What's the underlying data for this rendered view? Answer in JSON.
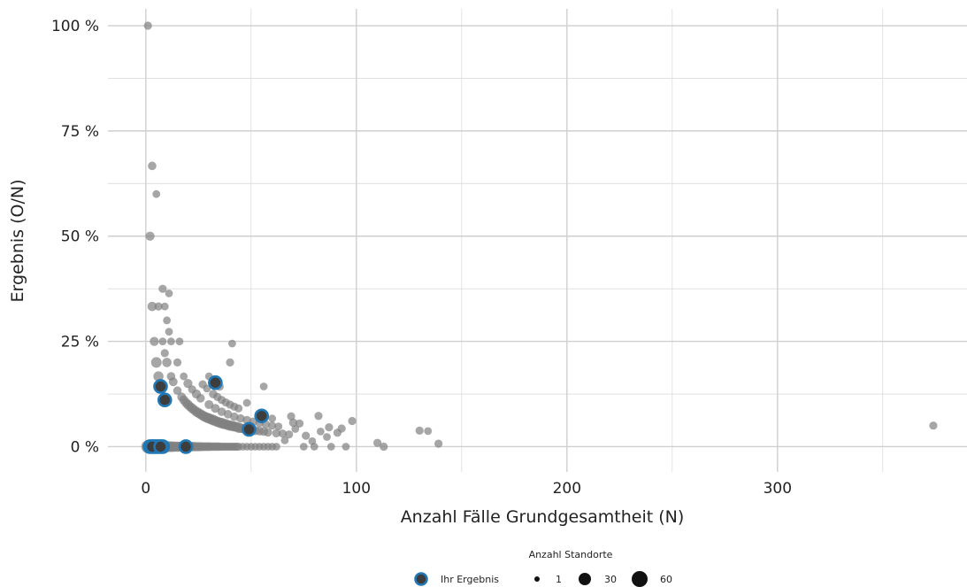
{
  "chart_data": {
    "type": "scatter",
    "xlabel": "Anzahl Fälle Grundgesamtheit (N)",
    "ylabel": "Ergebnis (O/N)",
    "xlim": [
      -18,
      390
    ],
    "ylim": [
      -6,
      104
    ],
    "x_ticks": [
      {
        "value": 0,
        "label": "0"
      },
      {
        "value": 100,
        "label": "100"
      },
      {
        "value": 200,
        "label": "200"
      },
      {
        "value": 300,
        "label": "300"
      }
    ],
    "y_ticks": [
      {
        "value": 0,
        "label": "0 %"
      },
      {
        "value": 25,
        "label": "25 %"
      },
      {
        "value": 50,
        "label": "50 %"
      },
      {
        "value": 75,
        "label": "75 %"
      },
      {
        "value": 100,
        "label": "100 %"
      }
    ],
    "grid": true,
    "legend": {
      "title": "Anzahl Standorte",
      "position": "bottom",
      "highlight_label": "Ihr Ergebnis",
      "size_labels": [
        "1",
        "30",
        "60"
      ],
      "size_values": [
        1,
        30,
        60
      ]
    },
    "colors": {
      "point": "#808080",
      "highlight_fill": "#3d3d3d",
      "highlight_ring": "#1f77b4"
    },
    "series": [
      {
        "name": "Standorte",
        "points": [
          [
            1,
            100,
            5
          ],
          [
            3,
            66.7,
            6
          ],
          [
            5,
            60,
            4
          ],
          [
            2,
            50,
            8
          ],
          [
            3,
            33.3,
            9
          ],
          [
            6,
            33.3,
            5
          ],
          [
            9,
            33.3,
            4
          ],
          [
            8,
            37.5,
            5
          ],
          [
            11,
            36.4,
            4
          ],
          [
            4,
            25,
            8
          ],
          [
            8,
            25,
            4
          ],
          [
            12,
            25,
            4
          ],
          [
            16,
            25,
            4
          ],
          [
            41,
            24.5,
            4
          ],
          [
            10,
            30,
            4
          ],
          [
            11,
            27.3,
            4
          ],
          [
            9,
            22.2,
            5
          ],
          [
            5,
            20,
            14
          ],
          [
            10,
            20,
            9
          ],
          [
            15,
            20,
            5
          ],
          [
            40,
            20,
            5
          ],
          [
            6,
            16.7,
            12
          ],
          [
            12,
            16.7,
            6
          ],
          [
            18,
            16.7,
            4
          ],
          [
            30,
            16.7,
            4
          ],
          [
            13,
            15.4,
            7
          ],
          [
            20,
            15,
            8
          ],
          [
            27,
            14.8,
            5
          ],
          [
            35,
            14.3,
            6
          ],
          [
            56,
            14.3,
            4
          ],
          [
            15,
            13.3,
            6
          ],
          [
            22,
            13.6,
            5
          ],
          [
            29,
            13.8,
            4
          ],
          [
            24,
            12.5,
            8
          ],
          [
            32,
            12.5,
            6
          ],
          [
            17,
            11.8,
            7
          ],
          [
            34,
            11.8,
            5
          ],
          [
            26,
            11.5,
            6
          ],
          [
            18,
            11.1,
            8
          ],
          [
            36,
            11.1,
            5
          ],
          [
            19,
            10.5,
            8
          ],
          [
            38,
            10.5,
            5
          ],
          [
            20,
            10,
            10
          ],
          [
            30,
            10,
            7
          ],
          [
            40,
            10,
            5
          ],
          [
            48,
            10.4,
            4
          ],
          [
            21,
            9.5,
            9
          ],
          [
            42,
            9.5,
            5
          ],
          [
            22,
            9.1,
            10
          ],
          [
            33,
            9.1,
            7
          ],
          [
            44,
            9.1,
            5
          ],
          [
            23,
            8.7,
            9
          ],
          [
            24,
            8.3,
            11
          ],
          [
            36,
            8.3,
            6
          ],
          [
            25,
            8,
            10
          ],
          [
            26,
            7.7,
            11
          ],
          [
            39,
            7.7,
            6
          ],
          [
            27,
            7.4,
            11
          ],
          [
            28,
            7.1,
            12
          ],
          [
            42,
            7.1,
            6
          ],
          [
            29,
            6.9,
            12
          ],
          [
            30,
            6.7,
            13
          ],
          [
            45,
            6.7,
            6
          ],
          [
            60,
            6.7,
            4
          ],
          [
            31,
            6.5,
            12
          ],
          [
            32,
            6.3,
            14
          ],
          [
            48,
            6.3,
            6
          ],
          [
            33,
            6.1,
            12
          ],
          [
            34,
            5.9,
            13
          ],
          [
            51,
            5.9,
            6
          ],
          [
            35,
            5.7,
            12
          ],
          [
            36,
            5.6,
            14
          ],
          [
            54,
            5.6,
            5
          ],
          [
            37,
            5.4,
            12
          ],
          [
            38,
            5.3,
            13
          ],
          [
            57,
            5.3,
            5
          ],
          [
            39,
            5.1,
            11
          ],
          [
            40,
            5,
            14
          ],
          [
            60,
            5,
            5
          ],
          [
            41,
            4.9,
            11
          ],
          [
            42,
            4.8,
            12
          ],
          [
            63,
            4.8,
            4
          ],
          [
            43,
            4.7,
            10
          ],
          [
            44,
            4.5,
            12
          ],
          [
            45,
            4.4,
            10
          ],
          [
            46,
            4.3,
            9
          ],
          [
            47,
            4.3,
            8
          ],
          [
            48,
            4.2,
            10
          ],
          [
            50,
            4,
            9
          ],
          [
            52,
            3.8,
            8
          ],
          [
            54,
            3.7,
            7
          ],
          [
            56,
            3.6,
            7
          ],
          [
            58,
            3.4,
            6
          ],
          [
            62,
            3.2,
            6
          ],
          [
            65,
            3.1,
            5
          ],
          [
            68,
            2.9,
            5
          ],
          [
            69,
            7.2,
            5
          ],
          [
            70,
            5.7,
            6
          ],
          [
            73,
            5.5,
            5
          ],
          [
            82,
            7.3,
            5
          ],
          [
            87,
            4.6,
            5
          ],
          [
            91,
            3.3,
            5
          ],
          [
            93,
            4.3,
            5
          ],
          [
            98,
            6.1,
            5
          ],
          [
            83,
            3.6,
            4
          ],
          [
            76,
            2.6,
            5
          ],
          [
            79,
            1.3,
            4
          ],
          [
            86,
            2.3,
            4
          ],
          [
            71,
            4.2,
            4
          ],
          [
            66,
            1.5,
            4
          ],
          [
            110,
            0.9,
            5
          ],
          [
            113,
            0,
            5
          ],
          [
            130,
            3.8,
            5
          ],
          [
            134,
            3.7,
            4
          ],
          [
            139,
            0.7,
            5
          ],
          [
            374,
            5,
            5
          ],
          [
            1,
            0,
            30
          ],
          [
            2,
            0,
            28
          ],
          [
            3,
            0,
            26
          ],
          [
            4,
            0,
            24
          ],
          [
            5,
            0,
            22
          ],
          [
            6,
            0,
            20
          ],
          [
            7,
            0,
            19
          ],
          [
            8,
            0,
            18
          ],
          [
            9,
            0,
            17
          ],
          [
            10,
            0,
            16
          ],
          [
            11,
            0,
            15
          ],
          [
            12,
            0,
            14
          ],
          [
            13,
            0,
            13
          ],
          [
            14,
            0,
            12
          ],
          [
            15,
            0,
            12
          ],
          [
            16,
            0,
            11
          ],
          [
            17,
            0,
            11
          ],
          [
            18,
            0,
            10
          ],
          [
            19,
            0,
            10
          ],
          [
            20,
            0,
            10
          ],
          [
            21,
            0,
            9
          ],
          [
            22,
            0,
            9
          ],
          [
            23,
            0,
            9
          ],
          [
            24,
            0,
            8
          ],
          [
            25,
            0,
            8
          ],
          [
            26,
            0,
            8
          ],
          [
            27,
            0,
            7
          ],
          [
            28,
            0,
            7
          ],
          [
            29,
            0,
            7
          ],
          [
            30,
            0,
            7
          ],
          [
            31,
            0,
            6
          ],
          [
            32,
            0,
            6
          ],
          [
            33,
            0,
            6
          ],
          [
            34,
            0,
            6
          ],
          [
            35,
            0,
            6
          ],
          [
            36,
            0,
            5
          ],
          [
            37,
            0,
            5
          ],
          [
            38,
            0,
            5
          ],
          [
            39,
            0,
            5
          ],
          [
            40,
            0,
            5
          ],
          [
            41,
            0,
            5
          ],
          [
            42,
            0,
            5
          ],
          [
            43,
            0,
            5
          ],
          [
            44,
            0,
            5
          ],
          [
            46,
            0,
            4
          ],
          [
            48,
            0,
            4
          ],
          [
            50,
            0,
            4
          ],
          [
            52,
            0,
            4
          ],
          [
            54,
            0,
            4
          ],
          [
            56,
            0,
            4
          ],
          [
            58,
            0,
            4
          ],
          [
            60,
            0,
            4
          ],
          [
            62,
            0,
            4
          ],
          [
            75,
            0,
            4
          ],
          [
            80,
            0,
            4
          ],
          [
            88,
            0,
            4
          ],
          [
            95,
            0,
            4
          ]
        ]
      },
      {
        "name": "Ihr Ergebnis",
        "points": [
          [
            2,
            0,
            5
          ],
          [
            4,
            0,
            5
          ],
          [
            6,
            0,
            5
          ],
          [
            8,
            0,
            5
          ],
          [
            5,
            0,
            5
          ],
          [
            3,
            0,
            5
          ],
          [
            7,
            14.3,
            5
          ],
          [
            9,
            11.1,
            5
          ],
          [
            33,
            15.2,
            5
          ],
          [
            55,
            7.3,
            5
          ],
          [
            49,
            4.1,
            5
          ],
          [
            7,
            0,
            5
          ],
          [
            19,
            0,
            5
          ]
        ]
      }
    ]
  }
}
